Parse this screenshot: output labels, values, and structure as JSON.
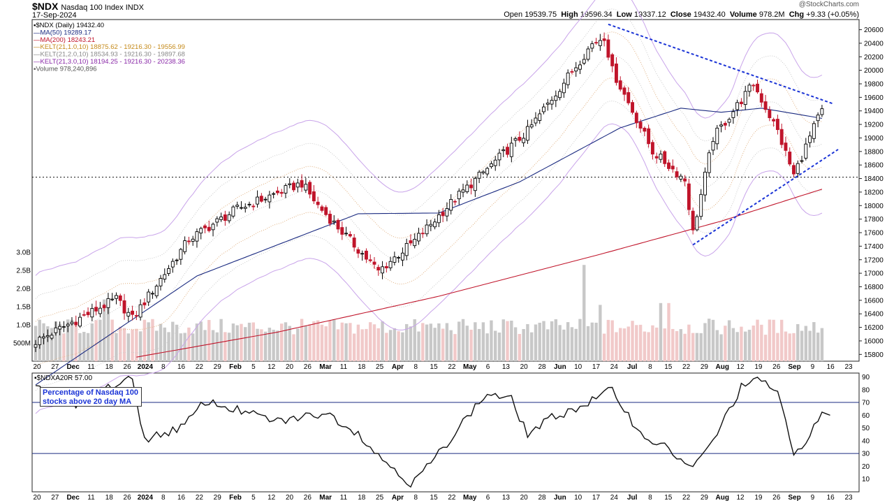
{
  "header": {
    "symbol": "$NDX",
    "name": "Nasdaq 100 Index  INDX",
    "date": "17-Sep-2024",
    "brand": "@StockCharts.com",
    "open_label": "Open",
    "open": "19539.75",
    "high_label": "High",
    "high": "19596.34",
    "low_label": "Low",
    "low": "19337.12",
    "close_label": "Close",
    "close": "19432.40",
    "volume_label": "Volume",
    "volume": "978.2M",
    "chg_label": "Chg",
    "chg": "+9.33 (+0.05%)"
  },
  "legend": [
    {
      "text": "▪$NDX (Daily) 19432.40",
      "color": "#000000"
    },
    {
      "text": "—MA(50) 19289.17",
      "color": "#1a2a80"
    },
    {
      "text": "—MA(200) 18243.21",
      "color": "#c0142a"
    },
    {
      "text": "—KELT(21,1.0,10) 18875.62 - 19216.30 - 19556.99",
      "color": "#c58a1a"
    },
    {
      "text": "—KELT(21,2.0,10) 18534.93 - 19216.30 - 19897.68",
      "color": "#8a8a8a"
    },
    {
      "text": "—KELT(21,3.0,10) 18194.25 - 19216.30 - 20238.36",
      "color": "#8a2aa8"
    },
    {
      "text": "▪Volume 978,240,896",
      "color": "#555555"
    }
  ],
  "lower_panel": {
    "label": "▪$NDXA20R 57.00",
    "annotation_line1": "Percentage of Nasdaq 100",
    "annotation_line2": "stocks above 20 day MA"
  },
  "colors": {
    "up": "#000000",
    "down": "#c0142a",
    "ma50": "#1a2a80",
    "ma200": "#c0142a",
    "kelt1": "#e0b080",
    "kelt2": "#c9c9c9",
    "kelt3": "#c9a4ea",
    "trend": "#1a33d6",
    "vol_up": "#c8c8c8",
    "vol_down": "#f1c9c9"
  },
  "chart_data": [
    {
      "type": "candlestick",
      "title": "$NDX Nasdaq 100 Index (Daily)",
      "ylim": [
        15700,
        20750
      ],
      "y_ticks": [
        15800,
        16000,
        16200,
        16400,
        16600,
        16800,
        17000,
        17200,
        17400,
        17600,
        17800,
        18000,
        18200,
        18400,
        18600,
        18800,
        19000,
        19200,
        19400,
        19600,
        19800,
        20000,
        20200,
        20400,
        20600
      ],
      "volume_ticks": [
        "500M",
        "1.0B",
        "1.5B",
        "2.0B",
        "2.5B",
        "3.0B"
      ],
      "x_ticks": [
        "20",
        "27",
        "Dec",
        "11",
        "18",
        "26",
        "2024",
        "8",
        "16",
        "22",
        "29",
        "Feb",
        "5",
        "12",
        "20",
        "26",
        "Mar",
        "11",
        "18",
        "25",
        "Apr",
        "8",
        "15",
        "22",
        "May",
        "6",
        "13",
        "20",
        "28",
        "Jun",
        "10",
        "17",
        "24",
        "Jul",
        "8",
        "15",
        "22",
        "29",
        "Aug",
        "12",
        "19",
        "26",
        "Sep",
        "9",
        "16",
        "23"
      ],
      "close_anchors": [
        {
          "i": 0,
          "v": 15990
        },
        {
          "i": 20,
          "v": 16620
        },
        {
          "i": 24,
          "v": 16330
        },
        {
          "i": 38,
          "v": 17500
        },
        {
          "i": 50,
          "v": 17950
        },
        {
          "i": 66,
          "v": 18330
        },
        {
          "i": 70,
          "v": 18000
        },
        {
          "i": 85,
          "v": 17030
        },
        {
          "i": 94,
          "v": 17480
        },
        {
          "i": 104,
          "v": 18100
        },
        {
          "i": 122,
          "v": 19100
        },
        {
          "i": 138,
          "v": 20390
        },
        {
          "i": 141,
          "v": 20500
        },
        {
          "i": 143,
          "v": 20000
        },
        {
          "i": 153,
          "v": 18800
        },
        {
          "i": 161,
          "v": 18380
        },
        {
          "i": 163,
          "v": 17600
        },
        {
          "i": 168,
          "v": 19000
        },
        {
          "i": 178,
          "v": 19800
        },
        {
          "i": 184,
          "v": 19100
        },
        {
          "i": 188,
          "v": 18450
        },
        {
          "i": 195,
          "v": 19432
        }
      ],
      "ma50_anchors": [
        {
          "i": 0,
          "v": 15350
        },
        {
          "i": 40,
          "v": 16960
        },
        {
          "i": 80,
          "v": 17880
        },
        {
          "i": 100,
          "v": 17890
        },
        {
          "i": 120,
          "v": 18350
        },
        {
          "i": 145,
          "v": 19150
        },
        {
          "i": 160,
          "v": 19440
        },
        {
          "i": 170,
          "v": 19380
        },
        {
          "i": 180,
          "v": 19440
        },
        {
          "i": 195,
          "v": 19289
        }
      ],
      "ma200_anchors": [
        {
          "i": 25,
          "v": 15760
        },
        {
          "i": 60,
          "v": 16130
        },
        {
          "i": 100,
          "v": 16660
        },
        {
          "i": 140,
          "v": 17280
        },
        {
          "i": 170,
          "v": 17770
        },
        {
          "i": 195,
          "v": 18243
        }
      ],
      "support_level": 18420,
      "trendlines": [
        {
          "from": {
            "i": 142,
            "v": 20680
          },
          "to": {
            "i": 198,
            "v": 19500
          }
        },
        {
          "from": {
            "i": 163,
            "v": 17420
          },
          "to": {
            "i": 199,
            "v": 18830
          }
        }
      ]
    },
    {
      "type": "line",
      "title": "$NDXA20R Percentage of Nasdaq 100 stocks above 20 day MA",
      "ylim": [
        0,
        93
      ],
      "y_ticks": [
        10,
        20,
        30,
        40,
        50,
        60,
        70,
        80,
        90
      ],
      "reference_lines": [
        70,
        30
      ],
      "last_value": 57.0,
      "anchors": [
        {
          "i": 0,
          "v": 80
        },
        {
          "i": 5,
          "v": 78
        },
        {
          "i": 10,
          "v": 66
        },
        {
          "i": 16,
          "v": 80
        },
        {
          "i": 24,
          "v": 88
        },
        {
          "i": 27,
          "v": 41
        },
        {
          "i": 33,
          "v": 47
        },
        {
          "i": 37,
          "v": 52
        },
        {
          "i": 42,
          "v": 71
        },
        {
          "i": 50,
          "v": 64
        },
        {
          "i": 60,
          "v": 55
        },
        {
          "i": 72,
          "v": 62
        },
        {
          "i": 80,
          "v": 46
        },
        {
          "i": 85,
          "v": 28
        },
        {
          "i": 90,
          "v": 16
        },
        {
          "i": 93,
          "v": 5
        },
        {
          "i": 100,
          "v": 30
        },
        {
          "i": 106,
          "v": 55
        },
        {
          "i": 112,
          "v": 77
        },
        {
          "i": 118,
          "v": 72
        },
        {
          "i": 122,
          "v": 45
        },
        {
          "i": 128,
          "v": 58
        },
        {
          "i": 136,
          "v": 68
        },
        {
          "i": 143,
          "v": 80
        },
        {
          "i": 150,
          "v": 45
        },
        {
          "i": 156,
          "v": 35
        },
        {
          "i": 163,
          "v": 18
        },
        {
          "i": 168,
          "v": 40
        },
        {
          "i": 175,
          "v": 82
        },
        {
          "i": 180,
          "v": 88
        },
        {
          "i": 184,
          "v": 78
        },
        {
          "i": 188,
          "v": 28
        },
        {
          "i": 193,
          "v": 50
        },
        {
          "i": 195,
          "v": 62
        },
        {
          "i": 197,
          "v": 57
        }
      ]
    }
  ]
}
